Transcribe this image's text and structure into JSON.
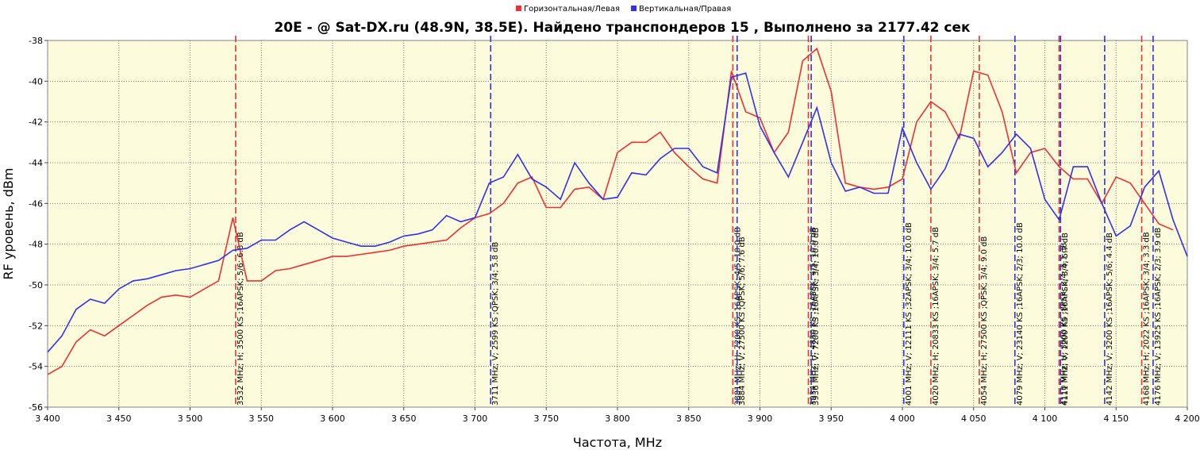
{
  "chart_data": {
    "type": "line",
    "title": "20E -  @ Sat-DX.ru (48.9N, 38.5E). Найдено транспондеров 15 , Выполнено за 2177.42 сек",
    "xlabel": "Частота, MHz",
    "ylabel": "RF уровень, dBm",
    "x": [
      3400,
      3410,
      3420,
      3430,
      3440,
      3450,
      3460,
      3470,
      3480,
      3490,
      3500,
      3510,
      3520,
      3530,
      3540,
      3550,
      3560,
      3570,
      3580,
      3590,
      3600,
      3610,
      3620,
      3630,
      3640,
      3650,
      3660,
      3670,
      3680,
      3690,
      3700,
      3710,
      3720,
      3730,
      3740,
      3750,
      3760,
      3770,
      3780,
      3790,
      3800,
      3810,
      3820,
      3830,
      3840,
      3850,
      3860,
      3870,
      3880,
      3890,
      3900,
      3910,
      3920,
      3930,
      3940,
      3950,
      3960,
      3970,
      3980,
      3990,
      4000,
      4010,
      4020,
      4030,
      4040,
      4050,
      4060,
      4070,
      4080,
      4090,
      4100,
      4110,
      4120,
      4130,
      4140,
      4150,
      4160,
      4170,
      4180,
      4190,
      4200
    ],
    "series": [
      {
        "name": "Горизонтальная/Левая",
        "color": "#ee3030",
        "values": [
          -54.4,
          -54,
          -52.8,
          -52.2,
          -52.5,
          -52,
          -51.5,
          -51,
          -50.6,
          -50.5,
          -50.6,
          -50.2,
          -49.8,
          -46.7,
          -49.8,
          -49.8,
          -49.3,
          -49.2,
          -49,
          -48.8,
          -48.6,
          -48.6,
          -48.5,
          -48.4,
          -48.3,
          -48.1,
          -48,
          -47.9,
          -47.8,
          -47.2,
          -46.7,
          -46.5,
          -46,
          -45,
          -44.7,
          -46.2,
          -46.2,
          -45.3,
          -45.2,
          -45.8,
          -43.5,
          -43,
          -43,
          -42.5,
          -43.5,
          -44.2,
          -44.8,
          -45,
          -39.5,
          -41.5,
          -41.8,
          -43.5,
          -42.5,
          -39,
          -38.4,
          -40.5,
          -45,
          -45.2,
          -45.3,
          -45.2,
          -44.8,
          -42,
          -41,
          -41.5,
          -42.8,
          -39.5,
          -39.7,
          -41.5,
          -44.5,
          -43.5,
          -43.3,
          -44.2,
          -44.8,
          -44.8,
          -46,
          -44.7,
          -45,
          -46,
          -47,
          -47.3,
          null
        ],
        "markers": [
          {
            "x": 3532,
            "label": "3532 MHz; H; 3500 KS ;16APSK; 5/6; 6.8 dB"
          },
          {
            "x": 3881,
            "label": "3881 MHz; H; 7200 KS ;16APSK; 4/5; 10.0 dB"
          },
          {
            "x": 3934,
            "label": "3934 MHz; H; 4850 KS ;16APSK; 4/5; 10.0 dB"
          },
          {
            "x": 4020,
            "label": "4020 MHz; H; 20833 KS ;16APSK; 3/4; 5.7 dB"
          },
          {
            "x": 4054,
            "label": "4054 MHz; H; 27500 KS ;QPSK; 3/4; 9.0 dB"
          },
          {
            "x": 4110,
            "label": "4110 MHz; H; 3000 KS ;8PSK; 3/4; 6.1 dB"
          },
          {
            "x": 4168,
            "label": "4168 MHz; H; 2022 KS ;16APSK; 3/4; 3.3 dB"
          }
        ]
      },
      {
        "name": "Вертикальная/Правая",
        "color": "#3030ee",
        "values": [
          -53.3,
          -52.5,
          -51.2,
          -50.7,
          -50.9,
          -50.2,
          -49.8,
          -49.7,
          -49.5,
          -49.3,
          -49.2,
          -49,
          -48.8,
          -48.3,
          -48.2,
          -47.8,
          -47.8,
          -47.3,
          -46.9,
          -47.3,
          -47.7,
          -47.9,
          -48.1,
          -48.1,
          -47.9,
          -47.6,
          -47.5,
          -47.3,
          -46.6,
          -46.9,
          -46.7,
          -45,
          -44.7,
          -43.6,
          -44.8,
          -45.2,
          -45.8,
          -44,
          -45,
          -45.8,
          -45.7,
          -44.5,
          -44.6,
          -43.8,
          -43.3,
          -43.3,
          -44.2,
          -44.5,
          -39.8,
          -39.6,
          -42.2,
          -43.5,
          -44.7,
          -43,
          -41.3,
          -44,
          -45.4,
          -45.2,
          -45.5,
          -45.5,
          -42.3,
          -44,
          -45.3,
          -44.3,
          -42.6,
          -42.8,
          -44.2,
          -43.5,
          -42.6,
          -43.3,
          -45.8,
          -46.8,
          -44.2,
          -44.2,
          -46,
          -47.6,
          -47.1,
          -45.2,
          -44.4,
          -46.8,
          -48.6
        ],
        "markers": [
          {
            "x": 3711,
            "label": "3711 MHz; V; 2599 KS ;QPSK; 3/4; 5.8 dB"
          },
          {
            "x": 3884,
            "label": "3884 MHz; V; 27500 KS ;QPSK; 5/6; 7.6 dB"
          },
          {
            "x": 3936,
            "label": "3936 MHz; V; 7200 KS ;16APSK; 3/4; 10.0 dB"
          },
          {
            "x": 4001,
            "label": "4001 MHz; V; 12111 KS ;32APSK; 3/4; 10.0 dB"
          },
          {
            "x": 4079,
            "label": "4079 MHz; V; 23140 KS ;16APSK; 2/3; 10.0 dB"
          },
          {
            "x": 4111,
            "label": "4111 MHz; V; 1200 KS ;16APSK; 3/4; 5.7 dB"
          },
          {
            "x": 4142,
            "label": "4142 MHz; V; 3200 KS ;16APSK; 5/6; 4.4 dB"
          },
          {
            "x": 4176,
            "label": "4176 MHz; V; 13925 KS ;16APSK; 2/3; 3.9 dB"
          }
        ]
      }
    ],
    "xlim": [
      3400,
      4200
    ],
    "xticks": [
      {
        "value": 3400,
        "label": "3 400"
      },
      {
        "value": 3450,
        "label": "3 450"
      },
      {
        "value": 3500,
        "label": "3 500"
      },
      {
        "value": 3550,
        "label": "3 550"
      },
      {
        "value": 3600,
        "label": "3 600"
      },
      {
        "value": 3650,
        "label": "3 650"
      },
      {
        "value": 3700,
        "label": "3 700"
      },
      {
        "value": 3750,
        "label": "3 750"
      },
      {
        "value": 3800,
        "label": "3 800"
      },
      {
        "value": 3850,
        "label": "3 850"
      },
      {
        "value": 3900,
        "label": "3 900"
      },
      {
        "value": 3950,
        "label": "3 950"
      },
      {
        "value": 4000,
        "label": "4 000"
      },
      {
        "value": 4050,
        "label": "4 050"
      },
      {
        "value": 4100,
        "label": "4 100"
      },
      {
        "value": 4150,
        "label": "4 150"
      },
      {
        "value": 4200,
        "label": "4 200"
      }
    ],
    "ylim": [
      -56,
      -38
    ],
    "yticks": [
      -56,
      -54,
      -52,
      -50,
      -48,
      -46,
      -44,
      -42,
      -40,
      -38
    ],
    "grid": true
  }
}
